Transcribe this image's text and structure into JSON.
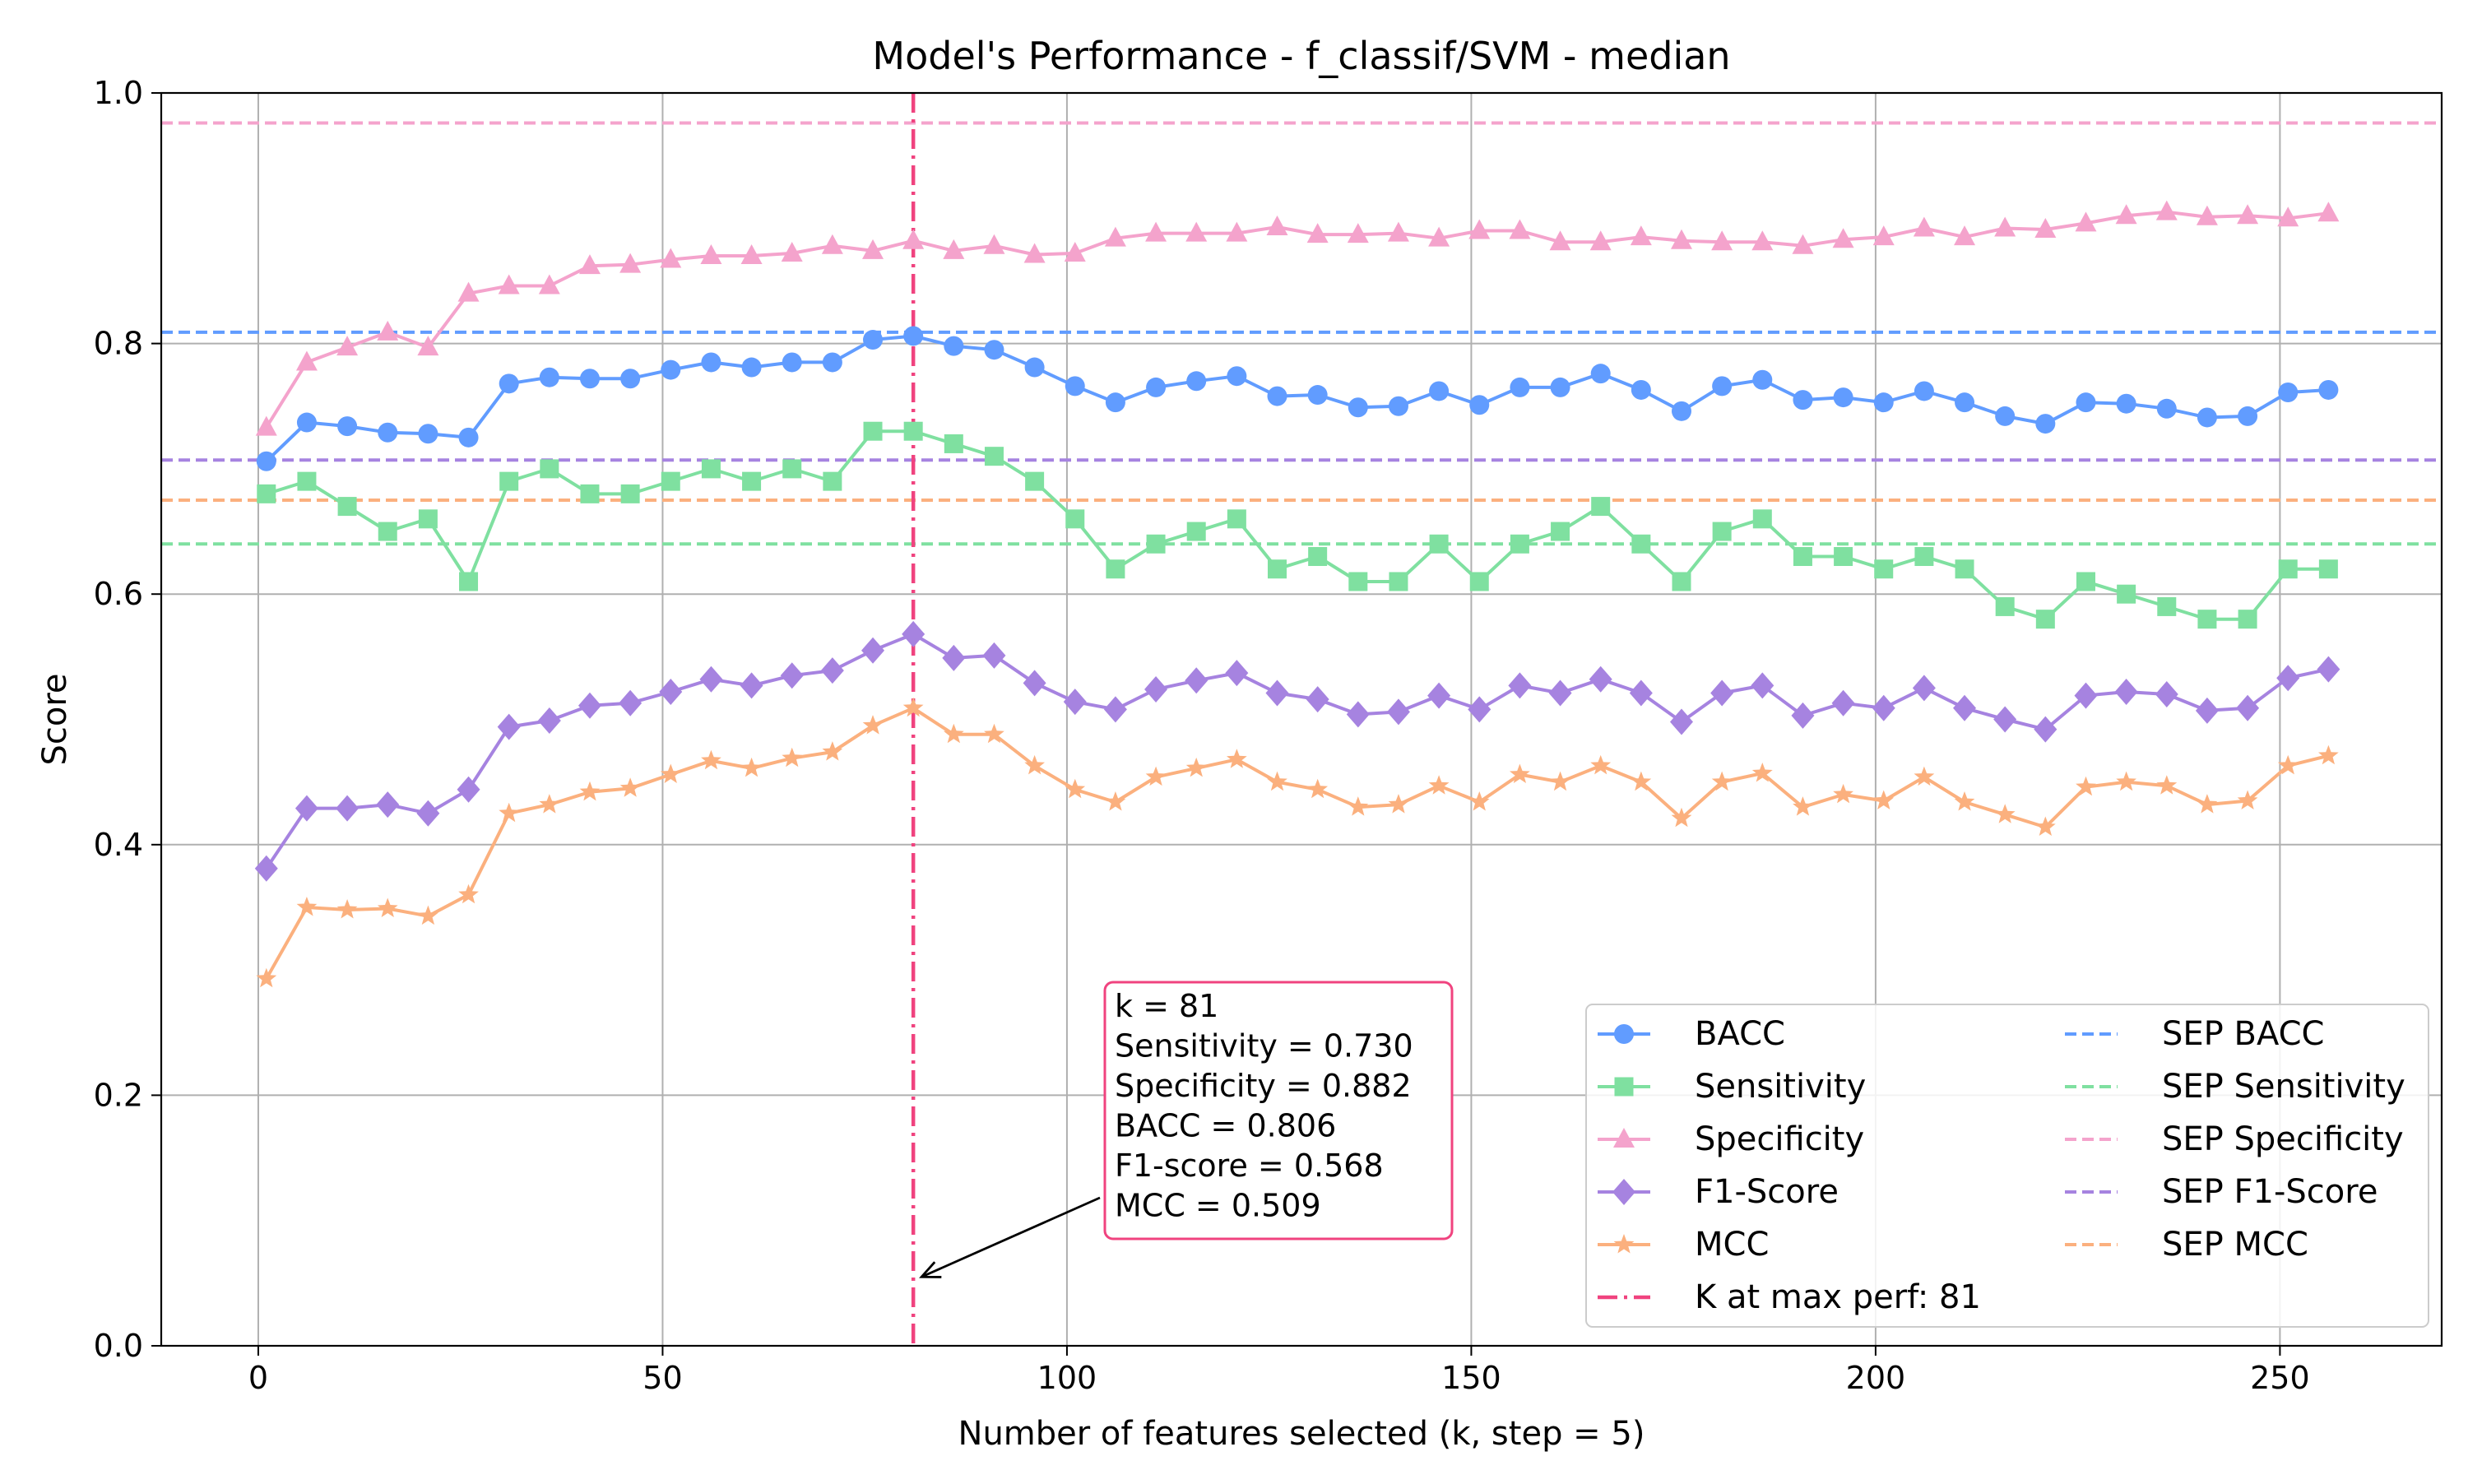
{
  "chart_data": {
    "type": "line",
    "title": "Model's Performance - f_classif/SVM - median",
    "xlabel": "Number of features selected (k, step = 5)",
    "ylabel": "Score",
    "xlim": [
      -12,
      270
    ],
    "ylim": [
      0.0,
      1.0
    ],
    "xticks": [
      0,
      50,
      100,
      150,
      200,
      250
    ],
    "yticks": [
      0.0,
      0.2,
      0.4,
      0.6,
      0.8,
      1.0
    ],
    "xtick_labels": [
      "0",
      "50",
      "100",
      "150",
      "200",
      "250"
    ],
    "ytick_labels": [
      "0.0",
      "0.2",
      "0.4",
      "0.6",
      "0.8",
      "1.0"
    ],
    "grid": true,
    "legend_position": "bottom-right",
    "x": [
      1,
      6,
      11,
      16,
      21,
      26,
      31,
      36,
      41,
      46,
      51,
      56,
      61,
      66,
      71,
      76,
      81,
      86,
      91,
      96,
      101,
      106,
      111,
      116,
      121,
      126,
      131,
      136,
      141,
      146,
      151,
      156,
      161,
      166,
      171,
      176,
      181,
      186,
      191,
      196,
      201,
      206,
      211,
      216,
      221,
      226,
      231,
      236,
      241,
      246,
      251,
      256
    ],
    "series": [
      {
        "name": "BACC",
        "color": "#619cff",
        "marker": "circle",
        "values": [
          0.706,
          0.737,
          0.734,
          0.729,
          0.728,
          0.725,
          0.768,
          0.773,
          0.772,
          0.772,
          0.779,
          0.785,
          0.781,
          0.785,
          0.785,
          0.803,
          0.806,
          0.798,
          0.795,
          0.781,
          0.766,
          0.753,
          0.765,
          0.77,
          0.774,
          0.758,
          0.759,
          0.749,
          0.75,
          0.762,
          0.751,
          0.765,
          0.765,
          0.776,
          0.763,
          0.746,
          0.766,
          0.771,
          0.755,
          0.757,
          0.753,
          0.762,
          0.753,
          0.742,
          0.736,
          0.753,
          0.752,
          0.748,
          0.741,
          0.742,
          0.761,
          0.763
        ]
      },
      {
        "name": "Sensitivity",
        "color": "#7fe0a0",
        "marker": "square",
        "values": [
          0.68,
          0.69,
          0.67,
          0.65,
          0.66,
          0.61,
          0.69,
          0.7,
          0.68,
          0.68,
          0.69,
          0.7,
          0.69,
          0.7,
          0.69,
          0.73,
          0.73,
          0.72,
          0.71,
          0.69,
          0.66,
          0.62,
          0.64,
          0.65,
          0.66,
          0.62,
          0.63,
          0.61,
          0.61,
          0.64,
          0.61,
          0.64,
          0.65,
          0.67,
          0.64,
          0.61,
          0.65,
          0.66,
          0.63,
          0.63,
          0.62,
          0.63,
          0.62,
          0.59,
          0.58,
          0.61,
          0.6,
          0.59,
          0.58,
          0.58,
          0.62,
          0.62
        ]
      },
      {
        "name": "Specificity",
        "color": "#f4a3cc",
        "marker": "triangle",
        "values": [
          0.733,
          0.785,
          0.797,
          0.809,
          0.797,
          0.84,
          0.846,
          0.846,
          0.862,
          0.863,
          0.867,
          0.87,
          0.87,
          0.872,
          0.878,
          0.874,
          0.882,
          0.874,
          0.878,
          0.871,
          0.872,
          0.884,
          0.888,
          0.888,
          0.888,
          0.893,
          0.887,
          0.887,
          0.888,
          0.884,
          0.89,
          0.89,
          0.881,
          0.881,
          0.885,
          0.882,
          0.881,
          0.881,
          0.878,
          0.883,
          0.885,
          0.892,
          0.885,
          0.892,
          0.891,
          0.896,
          0.902,
          0.905,
          0.901,
          0.902,
          0.9,
          0.904
        ]
      },
      {
        "name": "F1-Score",
        "color": "#a683e0",
        "marker": "diamond",
        "values": [
          0.381,
          0.429,
          0.429,
          0.432,
          0.425,
          0.444,
          0.494,
          0.499,
          0.511,
          0.513,
          0.522,
          0.532,
          0.527,
          0.535,
          0.539,
          0.555,
          0.568,
          0.549,
          0.551,
          0.529,
          0.514,
          0.508,
          0.524,
          0.531,
          0.537,
          0.521,
          0.516,
          0.504,
          0.506,
          0.519,
          0.508,
          0.527,
          0.521,
          0.532,
          0.521,
          0.498,
          0.521,
          0.527,
          0.503,
          0.513,
          0.509,
          0.525,
          0.509,
          0.5,
          0.492,
          0.519,
          0.522,
          0.52,
          0.507,
          0.509,
          0.533,
          0.54
        ]
      },
      {
        "name": "MCC",
        "color": "#fbb07e",
        "marker": "star",
        "values": [
          0.293,
          0.35,
          0.348,
          0.349,
          0.343,
          0.36,
          0.425,
          0.432,
          0.442,
          0.445,
          0.456,
          0.467,
          0.461,
          0.469,
          0.474,
          0.495,
          0.509,
          0.488,
          0.488,
          0.463,
          0.444,
          0.434,
          0.454,
          0.461,
          0.468,
          0.45,
          0.444,
          0.43,
          0.432,
          0.447,
          0.434,
          0.456,
          0.45,
          0.463,
          0.45,
          0.421,
          0.45,
          0.457,
          0.43,
          0.44,
          0.435,
          0.454,
          0.434,
          0.424,
          0.414,
          0.446,
          0.45,
          0.447,
          0.432,
          0.435,
          0.463,
          0.471
        ]
      }
    ],
    "reference_lines": [
      {
        "name": "SEP BACC",
        "color": "#619cff",
        "value": 0.809
      },
      {
        "name": "SEP Sensitivity",
        "color": "#7fe0a0",
        "value": 0.64
      },
      {
        "name": "SEP Specificity",
        "color": "#f4a3cc",
        "value": 0.976
      },
      {
        "name": "SEP F1-Score",
        "color": "#a683e0",
        "value": 0.707
      },
      {
        "name": "SEP MCC",
        "color": "#fbb07e",
        "value": 0.675
      }
    ],
    "vertical_line": {
      "name": "K at max perf: 81",
      "color": "#f0437f",
      "x": 81
    },
    "annotation": {
      "lines": [
        "k = 81",
        "Sensitivity = 0.730",
        "Specificity = 0.882",
        "BACC = 0.806",
        "F1-score = 0.568",
        "MCC = 0.509"
      ],
      "border_color": "#f0437f",
      "arrow_target": [
        81,
        0.055
      ]
    }
  }
}
